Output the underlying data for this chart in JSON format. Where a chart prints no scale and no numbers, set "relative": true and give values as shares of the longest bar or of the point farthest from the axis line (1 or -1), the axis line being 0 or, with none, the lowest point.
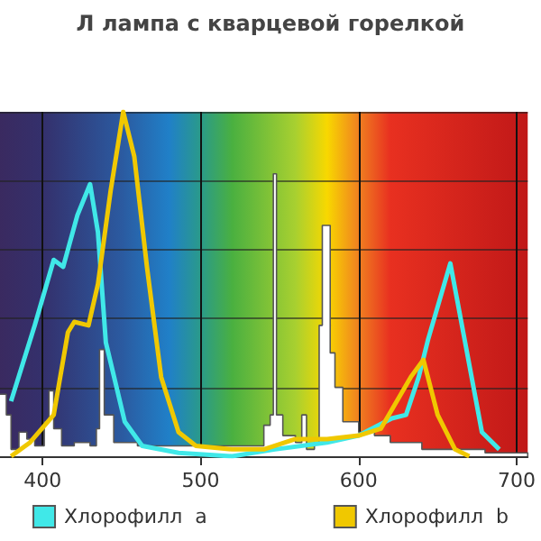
{
  "chart_data": {
    "type": "line",
    "title": "Л лампа с кварцевой горелкой",
    "relative": true,
    "xlim": [
      373,
      707
    ],
    "xticks": [
      400,
      500,
      600,
      700
    ],
    "grid": true,
    "legend": "bottom",
    "marker": "none",
    "series": [
      {
        "type": "area",
        "color": "#ffffff",
        "x": [
          373,
          377,
          380,
          385,
          390,
          395,
          401,
          404,
          407,
          412,
          420,
          430,
          434,
          436,
          439,
          445,
          460,
          480,
          500,
          520,
          540,
          544,
          546,
          548,
          552,
          560,
          564,
          567,
          572,
          575,
          577,
          580,
          582,
          585,
          590,
          600,
          610,
          620,
          640,
          660,
          680,
          707
        ],
        "values": [
          0.18,
          0.12,
          0.02,
          0.07,
          0.05,
          0.03,
          0.1,
          0.19,
          0.08,
          0.03,
          0.04,
          0.03,
          0.08,
          0.31,
          0.12,
          0.04,
          0.03,
          0.03,
          0.03,
          0.03,
          0.09,
          0.12,
          0.82,
          0.12,
          0.06,
          0.04,
          0.12,
          0.02,
          0.04,
          0.38,
          0.67,
          0.67,
          0.3,
          0.2,
          0.1,
          0.07,
          0.06,
          0.04,
          0.02,
          0.02,
          0.01,
          0
        ]
      },
      {
        "name": "Хлорофилл  a",
        "color": "#40e8e8",
        "x": [
          380,
          395,
          407,
          413,
          422,
          430,
          435,
          440,
          452,
          463,
          486,
          520,
          547,
          580,
          600,
          621,
          630,
          638,
          644,
          658,
          667,
          678,
          689
        ],
        "values": [
          0.16,
          0.38,
          0.57,
          0.55,
          0.7,
          0.79,
          0.65,
          0.33,
          0.1,
          0.03,
          0.01,
          0.0,
          0.02,
          0.04,
          0.06,
          0.11,
          0.12,
          0.23,
          0.34,
          0.56,
          0.34,
          0.07,
          0.02
        ]
      },
      {
        "name": "Хлорофилл  b",
        "color": "#f0c800",
        "x": [
          380,
          392,
          407,
          416,
          420,
          429,
          435,
          443,
          451,
          458,
          466,
          475,
          486,
          497,
          520,
          540,
          560,
          580,
          600,
          614,
          633,
          641,
          650,
          661,
          670
        ],
        "values": [
          0,
          0.04,
          0.12,
          0.36,
          0.39,
          0.38,
          0.5,
          0.77,
          1.0,
          0.87,
          0.55,
          0.23,
          0.07,
          0.03,
          0.02,
          0.02,
          0.05,
          0.05,
          0.06,
          0.08,
          0.23,
          0.28,
          0.12,
          0.02,
          0
        ]
      }
    ]
  }
}
